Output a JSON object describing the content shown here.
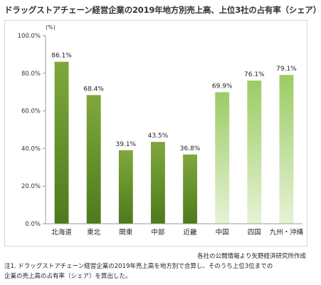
{
  "chart_data": {
    "type": "bar",
    "title": "ドラッグストアチェーン経営企業の2019年地方別売上高、上位3社の占有率（シェア）",
    "unit_label": "(%)",
    "categories": [
      "北海道",
      "東北",
      "関東",
      "中部",
      "近畿",
      "中国",
      "四国",
      "九州・沖縄"
    ],
    "values": [
      86.1,
      68.4,
      39.1,
      43.5,
      36.8,
      69.9,
      76.1,
      79.1
    ],
    "value_labels": [
      "86.1%",
      "68.4%",
      "39.1%",
      "43.5%",
      "36.8%",
      "69.9%",
      "76.1%",
      "79.1%"
    ],
    "ylim": [
      0,
      100
    ],
    "y_ticks": [
      0,
      20,
      40,
      60,
      80,
      100
    ],
    "y_tick_labels": [
      "0.0%",
      "20.0%",
      "40.0%",
      "60.0%",
      "80.0%",
      "100.0%"
    ],
    "grid": false,
    "legend": "none",
    "colors": {
      "dark_top": "#7fa83c",
      "dark_bottom": "#4f7a1c",
      "light_top": "#9ccc64",
      "light_bottom": "#e6f2d6",
      "axis": "#999999"
    },
    "light_bar_categories": [
      "中国",
      "四国",
      "九州・沖縄"
    ]
  },
  "source": "各社の公開情報より矢野経済研究所作成",
  "note": {
    "line1": "注1. ドラッグストアチェーン経営企業の2019年売上高を地方別で合算し、そのうち上位3位までの",
    "line2": "企業の売上高の占有率（シェア）を算出した。"
  }
}
